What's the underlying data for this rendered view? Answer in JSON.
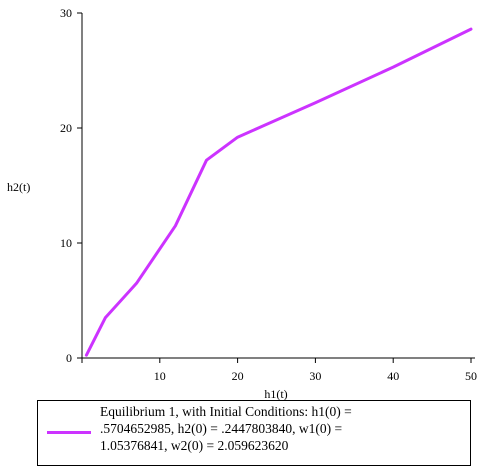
{
  "chart_data": {
    "type": "line",
    "xlabel": "h1(t)",
    "ylabel": "h2(t)",
    "xlim": [
      0,
      50
    ],
    "ylim": [
      0,
      30
    ],
    "xticks": [
      10,
      20,
      30,
      40,
      50
    ],
    "yticks": [
      0,
      10,
      20,
      30
    ],
    "grid": false,
    "legend_placement": "bottom",
    "series": [
      {
        "name": "Equilibrium 1, with Initial Conditions: h1(0) = .5704652985, h2(0) = .2447803840, w1(0) = 1.05376841, w2(0) = 2.059623620",
        "color": "#cc33ff",
        "x": [
          0.57,
          3,
          7,
          12,
          16,
          20,
          30,
          40,
          50
        ],
        "y": [
          0.24,
          3.5,
          6.5,
          11.5,
          17.2,
          19.2,
          22.2,
          25.3,
          28.6
        ]
      }
    ]
  },
  "legend": {
    "text": "Equilibrium 1, with Initial Conditions: h1(0) =\n.5704652985, h2(0) = .2447803840, w1(0) =\n1.05376841, w2(0) = 2.059623620"
  }
}
